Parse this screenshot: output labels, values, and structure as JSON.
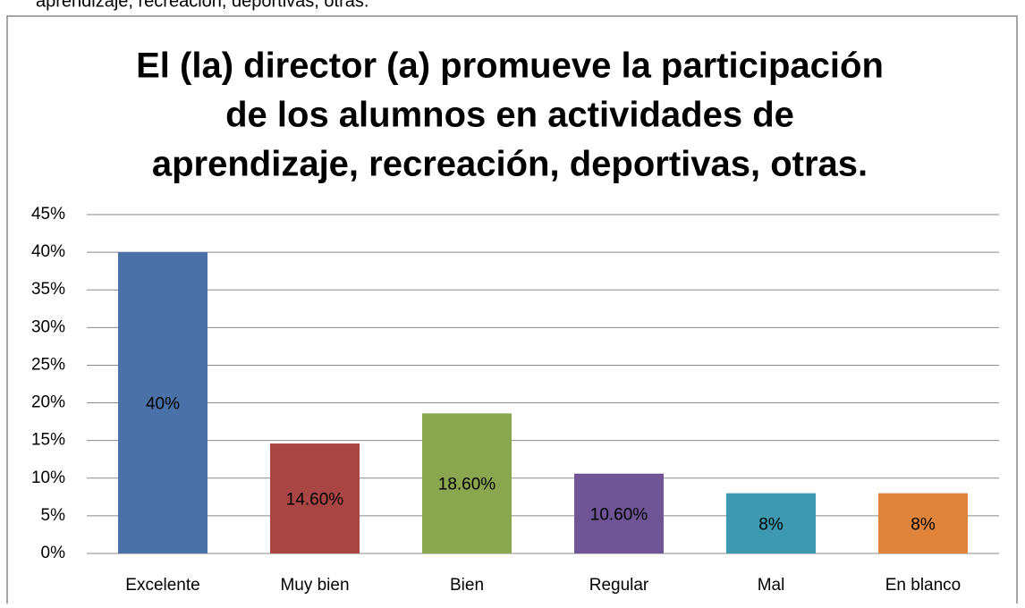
{
  "caption": "aprendizaje, recreación, deportivas, otras.",
  "chart_data": {
    "type": "bar",
    "title": [
      "El (la) director (a) promueve la participación",
      "de los alumnos en actividades de",
      "aprendizaje, recreación, deportivas, otras."
    ],
    "categories": [
      "Excelente",
      "Muy bien",
      "Bien",
      "Regular",
      "Mal",
      "En blanco"
    ],
    "values": [
      40,
      14.6,
      18.6,
      10.6,
      8,
      8
    ],
    "value_labels": [
      "40%",
      "14.60%",
      "18.60%",
      "10.60%",
      "8%",
      "8%"
    ],
    "colors": [
      "#4a72a8",
      "#a94643",
      "#8aa64f",
      "#6f5595",
      "#3d99b0",
      "#e0843c"
    ],
    "ylim": [
      0,
      45
    ],
    "yticks": [
      {
        "value": 0,
        "label": "0%"
      },
      {
        "value": 5,
        "label": "5%"
      },
      {
        "value": 10,
        "label": "10%"
      },
      {
        "value": 15,
        "label": "15%"
      },
      {
        "value": 20,
        "label": "20%"
      },
      {
        "value": 25,
        "label": "25%"
      },
      {
        "value": 30,
        "label": "30%"
      },
      {
        "value": 35,
        "label": "35%"
      },
      {
        "value": 40,
        "label": "40%"
      },
      {
        "value": 45,
        "label": "45%"
      }
    ],
    "grid": true
  }
}
